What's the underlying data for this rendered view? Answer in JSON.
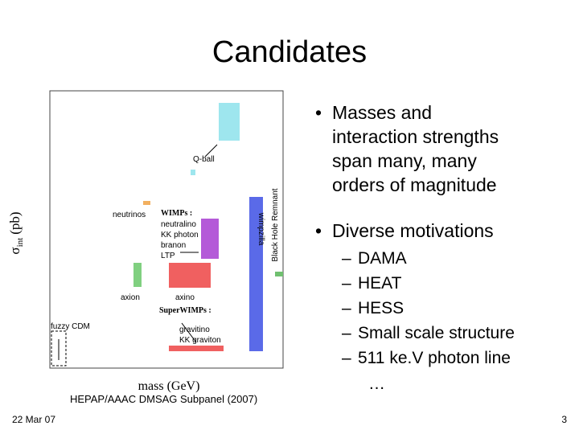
{
  "title": "Candidates",
  "figure": {
    "y_label": {
      "symbol": "σ",
      "subscript": "int",
      "unit": "(pb)"
    },
    "x_label": "mass (GeV)",
    "labels": {
      "q_ball": "Q-ball",
      "neutrinos": "neutrinos",
      "wimps": "WIMPs :",
      "neutralino": "neutralino",
      "kk_photon": "KK photon",
      "branon": "branon",
      "ltp": "LTP",
      "axion": "axion",
      "axino": "axino",
      "superwimps": "SuperWIMPs :",
      "gravitino": "gravitino",
      "kk_graviton": "KK graviton",
      "wimpzilla": "wimpzilla",
      "black_hole": "Black Hole Remnant",
      "fuzzy": "fuzzy CDM"
    },
    "caption": "HEPAP/AAAC DMSAG Subpanel (2007)"
  },
  "bullets": [
    {
      "lines": [
        "Masses and",
        "interaction strengths",
        "span many, many",
        "orders of magnitude"
      ]
    },
    {
      "lines": [
        "Diverse motivations"
      ],
      "sub_items": [
        "DAMA",
        "HEAT",
        "HESS",
        "Small scale structure",
        "511 ke.V photon line"
      ]
    }
  ],
  "ellipsis": "…",
  "footer": {
    "date": "22 Mar 07",
    "page": "3"
  }
}
